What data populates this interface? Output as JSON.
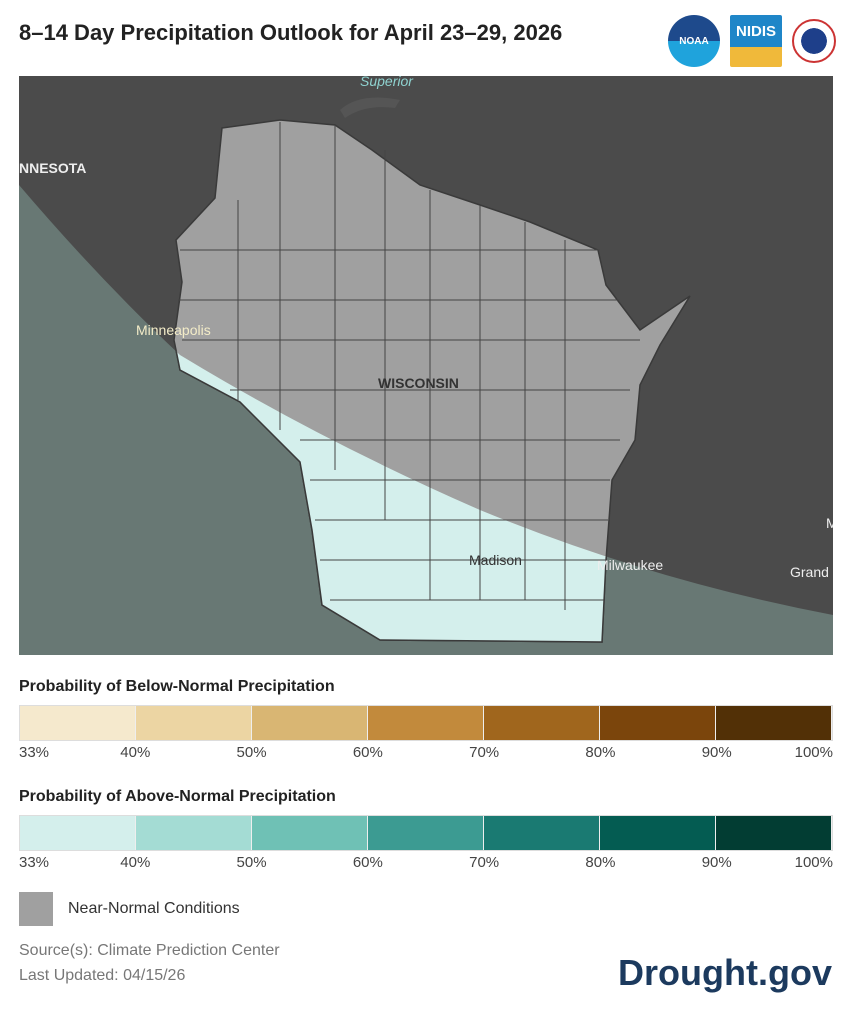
{
  "title": "8–14 Day Precipitation Outlook for April 23–29, 2026",
  "logos": {
    "noaa": "NOAA",
    "nidis": "NIDIS",
    "nws": "National Weather Service"
  },
  "map": {
    "labels": {
      "superior": "Superior",
      "minnesota": "NNESOTA",
      "minneapolis": "Minneapolis",
      "wisconsin": "WISCONSIN",
      "madison": "Madison",
      "milwaukee": "Milwaukee",
      "grand": "Grand",
      "m": "M"
    }
  },
  "legend": {
    "below": {
      "title": "Probability of Below-Normal Precipitation",
      "colors": [
        "#f5e9cd",
        "#ecd5a3",
        "#d9b673",
        "#c28a3c",
        "#a0661d",
        "#7b450c",
        "#523006"
      ]
    },
    "above": {
      "title": "Probability of Above-Normal Precipitation",
      "colors": [
        "#d4efec",
        "#a4dcd4",
        "#6fc1b5",
        "#3c9b92",
        "#1a7a72",
        "#045c52",
        "#023d33"
      ]
    },
    "ticks": [
      "33%",
      "40%",
      "50%",
      "60%",
      "70%",
      "80%",
      "90%",
      "100%"
    ],
    "near_normal": {
      "label": "Near-Normal Conditions",
      "color": "#a0a0a0"
    }
  },
  "source": "Source(s): Climate Prediction Center",
  "updated": "Last Updated: 04/15/26",
  "brand": "Drought.gov"
}
